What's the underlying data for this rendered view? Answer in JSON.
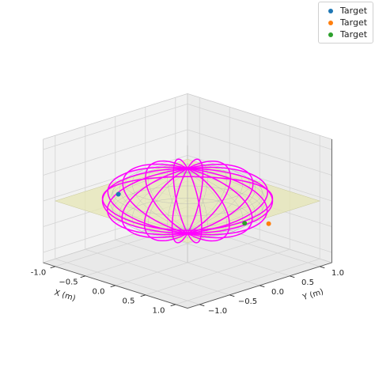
{
  "chart_data": {
    "type": "scatter",
    "projection": "3d",
    "title": "",
    "xlabel": "X (m)",
    "ylabel": "Y (m)",
    "zlabel": "",
    "xlim": [
      -1.2,
      1.2
    ],
    "ylim": [
      -1.2,
      1.2
    ],
    "zlim": [
      -1.2,
      1.2
    ],
    "xticks": [
      "-1.0",
      "−0.5",
      "0.0",
      "0.5",
      "1.0"
    ],
    "yticks": [
      "−1.0",
      "−0.5",
      "0.0",
      "0.5",
      "1.0"
    ],
    "grid": true,
    "legend_position": "top-right",
    "series": [
      {
        "name": "Target",
        "color": "#1f77b4",
        "points": [
          [
            -0.55,
            -0.6,
            0.15
          ]
        ]
      },
      {
        "name": "Target",
        "color": "#ff7f0e",
        "points": [
          [
            0.8,
            0.55,
            -0.35
          ]
        ]
      },
      {
        "name": "Target",
        "color": "#2ca02c",
        "points": [
          [
            0.45,
            0.5,
            -0.45
          ]
        ]
      }
    ],
    "trajectory": {
      "color": "#ff00ff",
      "shape": "ellipsoid meridian loops",
      "radii": [
        1.0,
        1.0,
        0.6
      ],
      "loops": 9
    },
    "plane": {
      "color": "#e6e6b4",
      "z": 0.0
    }
  }
}
